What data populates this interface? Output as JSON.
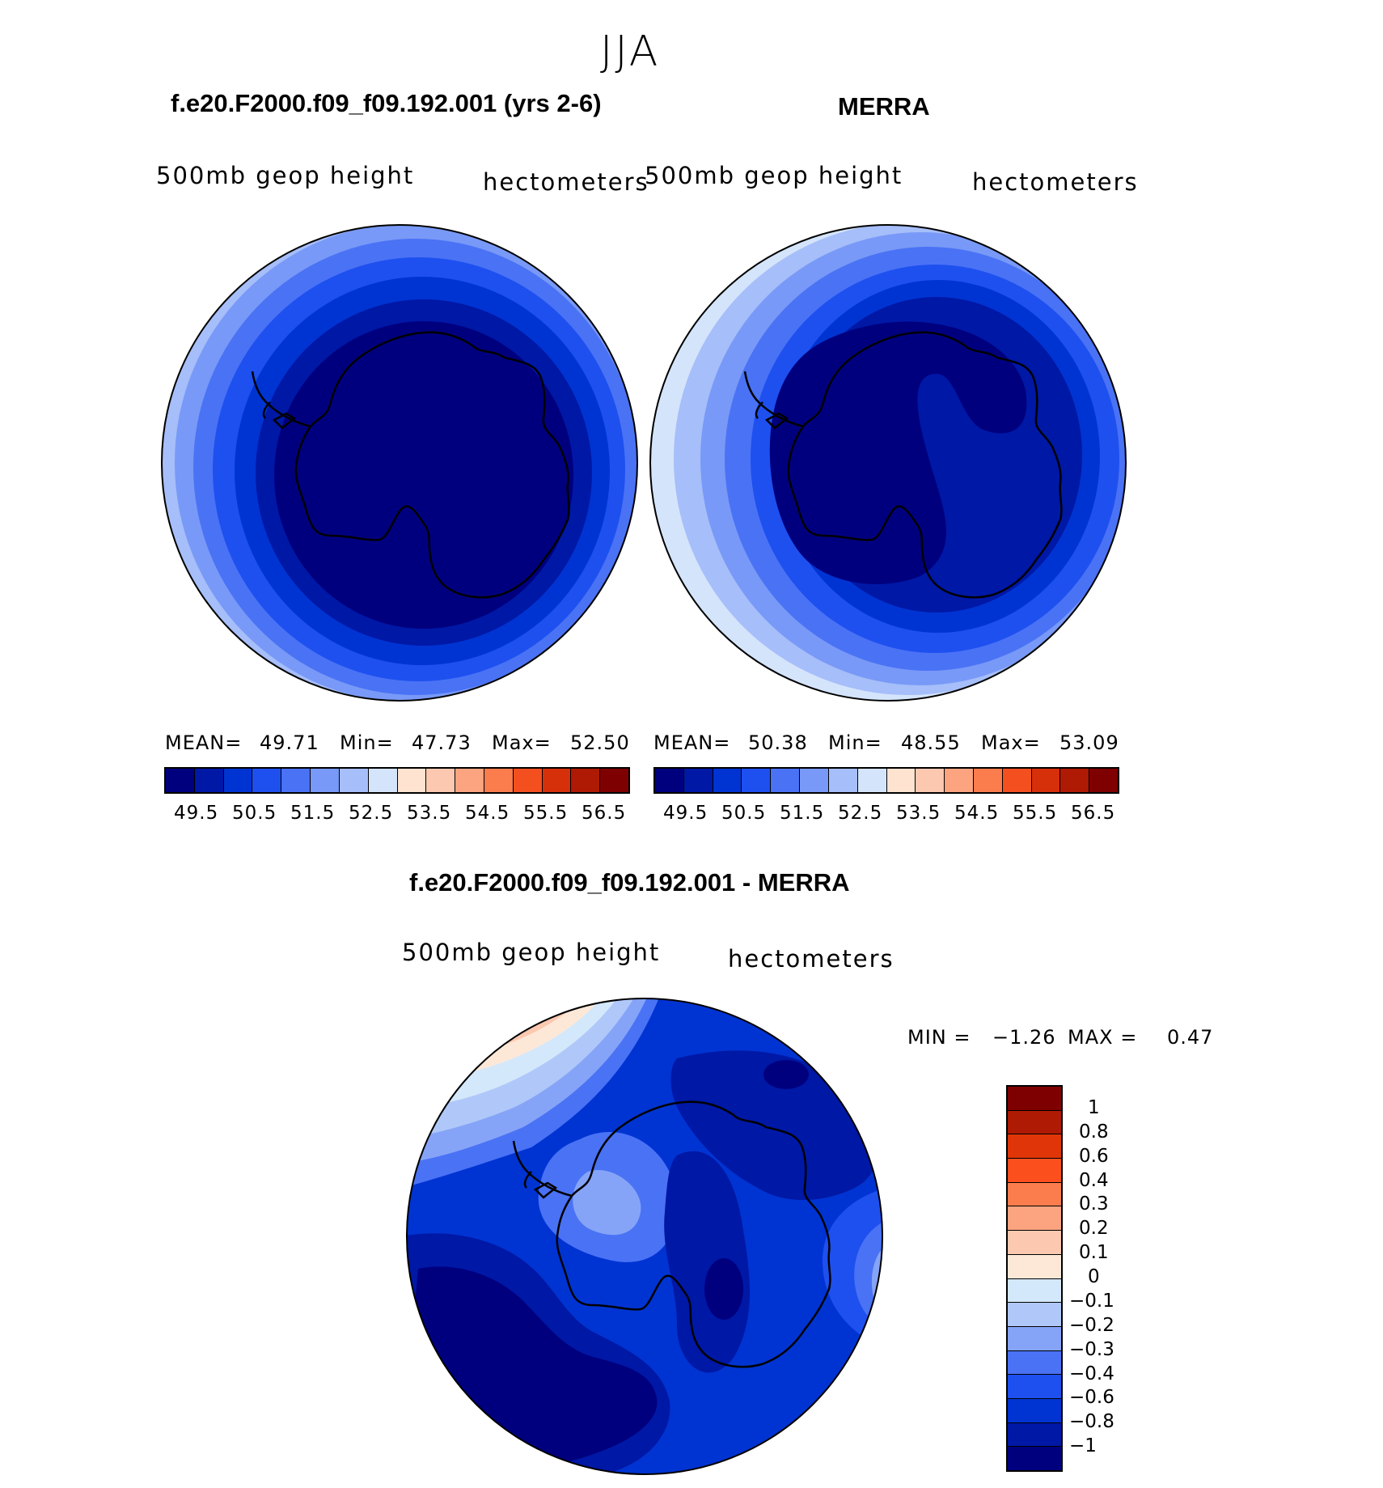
{
  "season": "JJA",
  "palette": [
    "#00007f",
    "#0018a6",
    "#0034d2",
    "#1e50f0",
    "#4a72f5",
    "#7899f7",
    "#a6bef9",
    "#d4e4fb",
    "#fde3d0",
    "#fcc8b0",
    "#fba47f",
    "#fb7c4d",
    "#f4501f",
    "#d6300b",
    "#af1a04",
    "#7f0000"
  ],
  "panels": {
    "model": {
      "title": "f.e20.F2000.f09_f09.192.001 (yrs 2-6)",
      "left_label": "500mb geop height",
      "right_label": "hectometers",
      "mean_label": "MEAN=",
      "mean": "49.71",
      "min_label": "Min=",
      "min": "47.73",
      "max_label": "Max=",
      "max": "52.50"
    },
    "obs": {
      "title": "MERRA",
      "left_label": "500mb geop height",
      "right_label": "hectometers",
      "mean_label": "MEAN=",
      "mean": "50.38",
      "min_label": "Min=",
      "min": "48.55",
      "max_label": "Max=",
      "max": "53.09"
    },
    "diff": {
      "title": "f.e20.F2000.f09_f09.192.001 - MERRA",
      "left_label": "500mb geop height",
      "right_label": "hectometers",
      "min_label": "MIN =",
      "min": "−1.26",
      "max_label": "MAX =",
      "max": "0.47"
    }
  },
  "colorbar_ticks": [
    "49.5",
    "50.5",
    "51.5",
    "52.5",
    "53.5",
    "54.5",
    "55.5",
    "56.5"
  ],
  "diff_levels": [
    "1",
    "0.8",
    "0.6",
    "0.4",
    "0.3",
    "0.2",
    "0.1",
    "0",
    "−0.1",
    "−0.2",
    "−0.3",
    "−0.4",
    "−0.6",
    "−0.8",
    "−1"
  ],
  "diff_palette": [
    "#7f0000",
    "#af1a04",
    "#e03508",
    "#fb4f1e",
    "#fb7c4d",
    "#fba47f",
    "#fcc8b0",
    "#fde8d8",
    "#d4e8fb",
    "#b0c8f9",
    "#86a4f7",
    "#4a72f5",
    "#1e50f0",
    "#0034d2",
    "#0018a6",
    "#00007f"
  ]
}
